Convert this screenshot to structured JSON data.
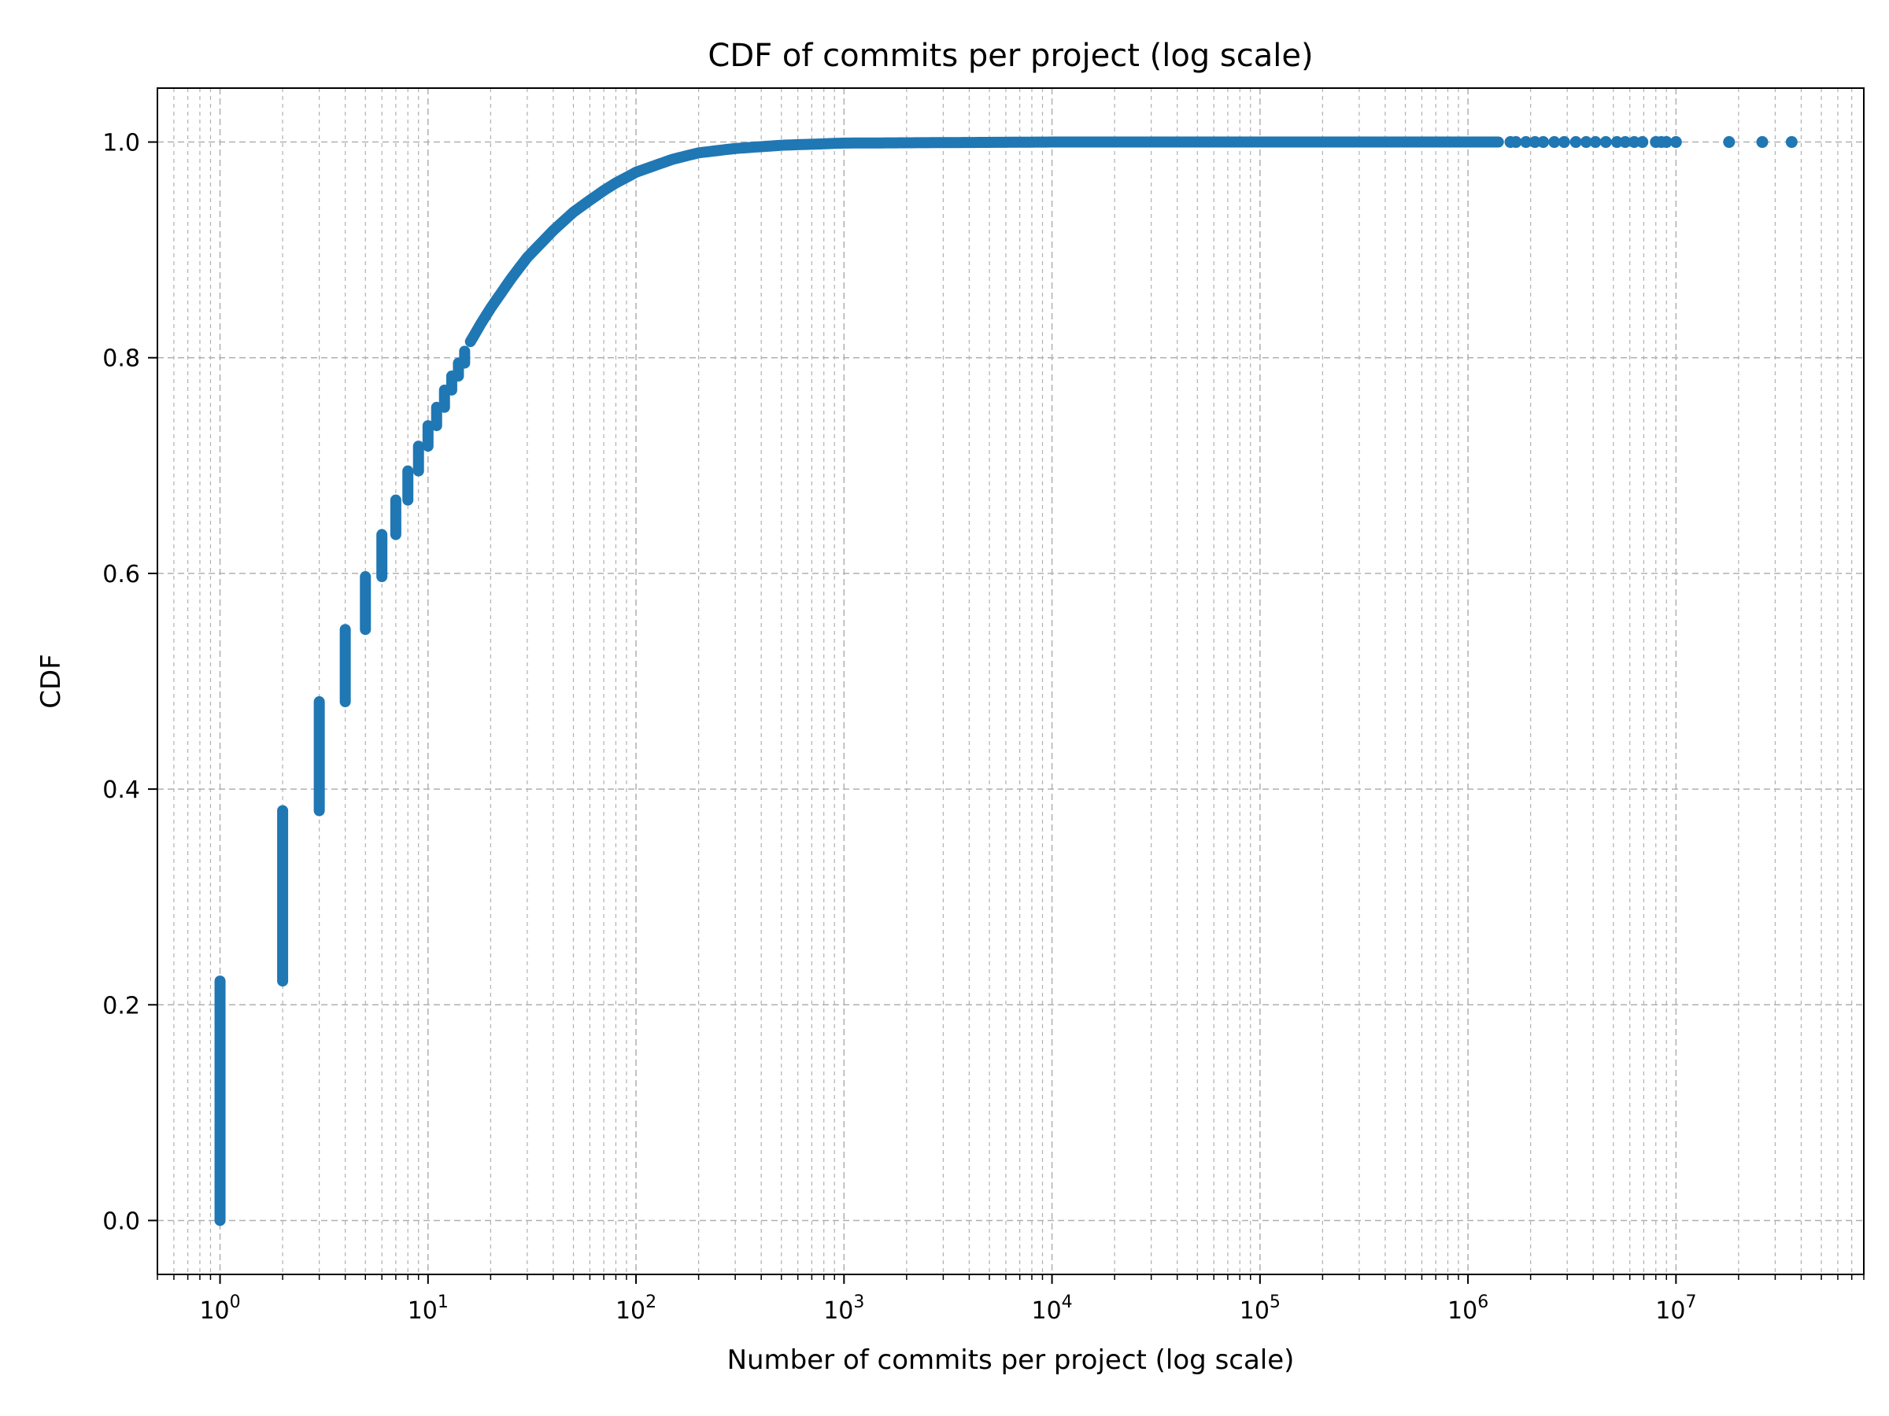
{
  "chart_data": {
    "type": "scatter",
    "title": "CDF of commits per project (log scale)",
    "xlabel": "Number of commits per project (log scale)",
    "ylabel": "CDF",
    "x_scale": "log",
    "xlim": [
      0.5,
      80000000
    ],
    "ylim": [
      -0.05,
      1.05
    ],
    "x_ticks": [
      1,
      10,
      100,
      1000,
      10000,
      100000,
      1000000,
      10000000
    ],
    "x_tick_labels": [
      {
        "base": "10",
        "exp": "0"
      },
      {
        "base": "10",
        "exp": "1"
      },
      {
        "base": "10",
        "exp": "2"
      },
      {
        "base": "10",
        "exp": "3"
      },
      {
        "base": "10",
        "exp": "4"
      },
      {
        "base": "10",
        "exp": "5"
      },
      {
        "base": "10",
        "exp": "6"
      },
      {
        "base": "10",
        "exp": "7"
      }
    ],
    "y_ticks": [
      0.0,
      0.2,
      0.4,
      0.6,
      0.8,
      1.0
    ],
    "y_tick_labels": [
      "0.0",
      "0.2",
      "0.4",
      "0.6",
      "0.8",
      "1.0"
    ],
    "grid": true,
    "series_color": "#1f77b4",
    "discrete_steps": [
      {
        "x": 1,
        "y_from": 0.0,
        "y_to": 0.222
      },
      {
        "x": 2,
        "y_from": 0.222,
        "y_to": 0.38
      },
      {
        "x": 3,
        "y_from": 0.38,
        "y_to": 0.481
      },
      {
        "x": 4,
        "y_from": 0.481,
        "y_to": 0.548
      },
      {
        "x": 5,
        "y_from": 0.548,
        "y_to": 0.597
      },
      {
        "x": 6,
        "y_from": 0.597,
        "y_to": 0.636
      },
      {
        "x": 7,
        "y_from": 0.636,
        "y_to": 0.668
      },
      {
        "x": 8,
        "y_from": 0.668,
        "y_to": 0.695
      },
      {
        "x": 9,
        "y_from": 0.695,
        "y_to": 0.718
      },
      {
        "x": 10,
        "y_from": 0.718,
        "y_to": 0.737
      },
      {
        "x": 11,
        "y_from": 0.737,
        "y_to": 0.754
      },
      {
        "x": 12,
        "y_from": 0.754,
        "y_to": 0.77
      },
      {
        "x": 13,
        "y_from": 0.77,
        "y_to": 0.783
      },
      {
        "x": 14,
        "y_from": 0.783,
        "y_to": 0.795
      },
      {
        "x": 15,
        "y_from": 0.795,
        "y_to": 0.806
      }
    ],
    "cdf_curve": [
      [
        16,
        0.815
      ],
      [
        18,
        0.832
      ],
      [
        20,
        0.846
      ],
      [
        25,
        0.873
      ],
      [
        30,
        0.893
      ],
      [
        40,
        0.918
      ],
      [
        50,
        0.935
      ],
      [
        60,
        0.946
      ],
      [
        70,
        0.955
      ],
      [
        80,
        0.962
      ],
      [
        100,
        0.972
      ],
      [
        150,
        0.984
      ],
      [
        200,
        0.99
      ],
      [
        300,
        0.994
      ],
      [
        500,
        0.997
      ],
      [
        1000,
        0.999
      ],
      [
        10000,
        1.0
      ],
      [
        1000000,
        1.0
      ],
      [
        1400000,
        1.0
      ]
    ],
    "tail_points": [
      1600000,
      1700000,
      1900000,
      2100000,
      2300000,
      2600000,
      2900000,
      3300000,
      3700000,
      4100000,
      4600000,
      5200000,
      5700000,
      6300000,
      6900000,
      8000000,
      8500000,
      9000000,
      10000000,
      18000000,
      26000000,
      36000000
    ]
  }
}
